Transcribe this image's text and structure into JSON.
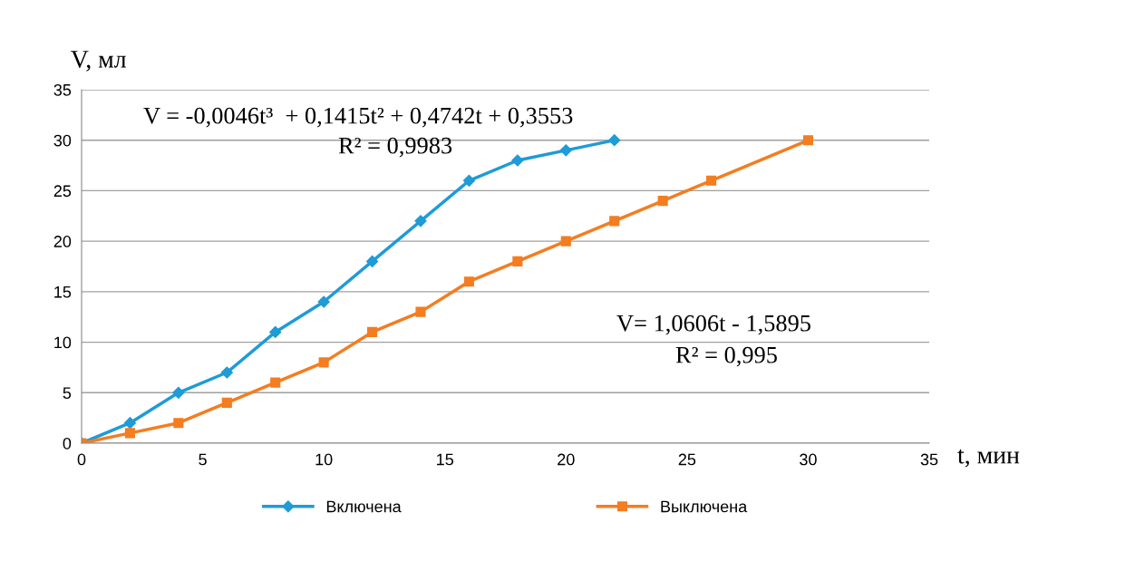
{
  "chart_data": {
    "type": "line",
    "xlabel": "t, мин",
    "ylabel": "V, мл",
    "xlim": [
      0,
      35
    ],
    "xticks": [
      0,
      5,
      10,
      15,
      20,
      25,
      30,
      35
    ],
    "ylim": [
      0,
      35
    ],
    "yticks": [
      0,
      5,
      10,
      15,
      20,
      25,
      30,
      35
    ],
    "grid": "y",
    "legend": "bottom",
    "line_style": "solid",
    "series": [
      {
        "name": "Включена",
        "color": "#1f9bd7",
        "marker": "diamond",
        "x": [
          0,
          2,
          4,
          6,
          8,
          10,
          12,
          14,
          16,
          18,
          20,
          22
        ],
        "values": [
          0,
          2,
          5,
          7,
          11,
          14,
          18,
          22,
          26,
          28,
          29,
          30
        ]
      },
      {
        "name": "Выключена",
        "color": "#f47d20",
        "marker": "square",
        "x": [
          0,
          2,
          4,
          6,
          8,
          10,
          12,
          14,
          16,
          18,
          20,
          22,
          24,
          26,
          30
        ],
        "values": [
          0,
          1,
          2,
          4,
          6,
          8,
          11,
          13,
          16,
          18,
          20,
          22,
          24,
          26,
          30
        ]
      }
    ],
    "annotations": [
      "V = -0,0046t³  + 0,1415t² + 0,4742t + 0,3553",
      "R² = 0,9983",
      "V= 1,0606t - 1,5895",
      "R² = 0,995"
    ]
  }
}
